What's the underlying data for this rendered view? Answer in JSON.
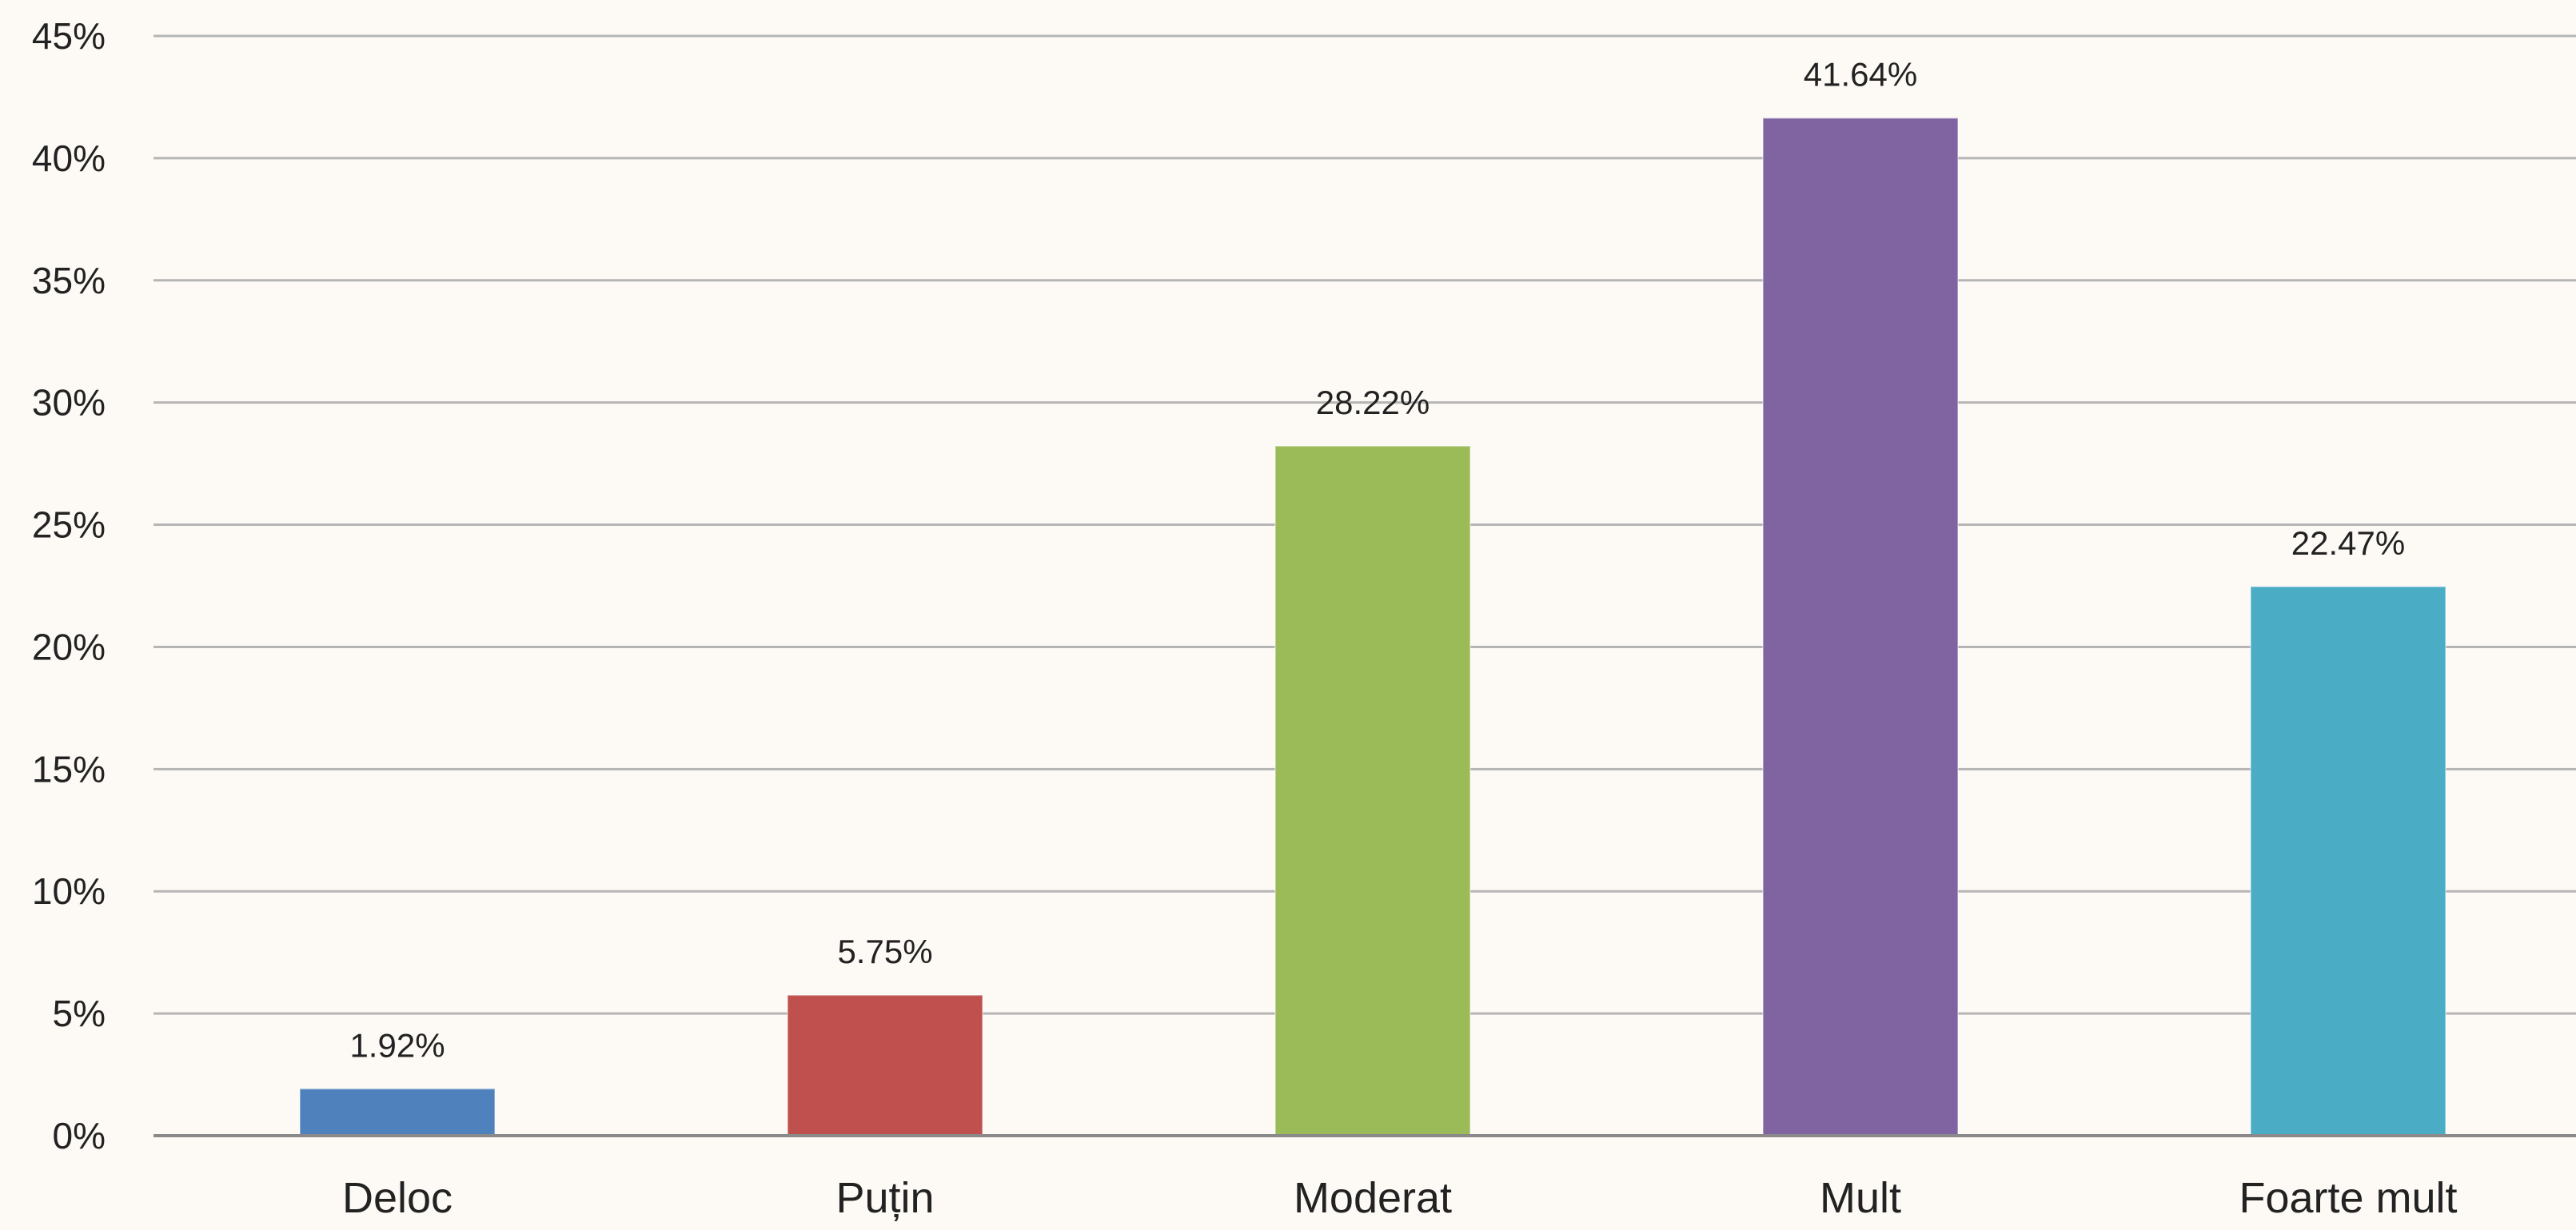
{
  "chart_data": {
    "type": "bar",
    "categories": [
      "Deloc",
      "Puțin",
      "Moderat",
      "Mult",
      "Foarte mult"
    ],
    "values": [
      1.92,
      5.75,
      28.22,
      41.64,
      22.47
    ],
    "data_labels": [
      "1.92%",
      "5.75%",
      "28.22%",
      "41.64%",
      "22.47%"
    ],
    "colors": [
      "#4f81bd",
      "#c0504d",
      "#9bbb59",
      "#8064a2",
      "#4bacc6"
    ],
    "ylim": [
      0,
      45
    ],
    "yticks": [
      0,
      5,
      10,
      15,
      20,
      25,
      30,
      35,
      40,
      45
    ],
    "ytick_labels": [
      "0%",
      "5%",
      "10%",
      "15%",
      "20%",
      "25%",
      "30%",
      "35%",
      "40%",
      "45%"
    ],
    "grid": true,
    "legend": "none"
  }
}
